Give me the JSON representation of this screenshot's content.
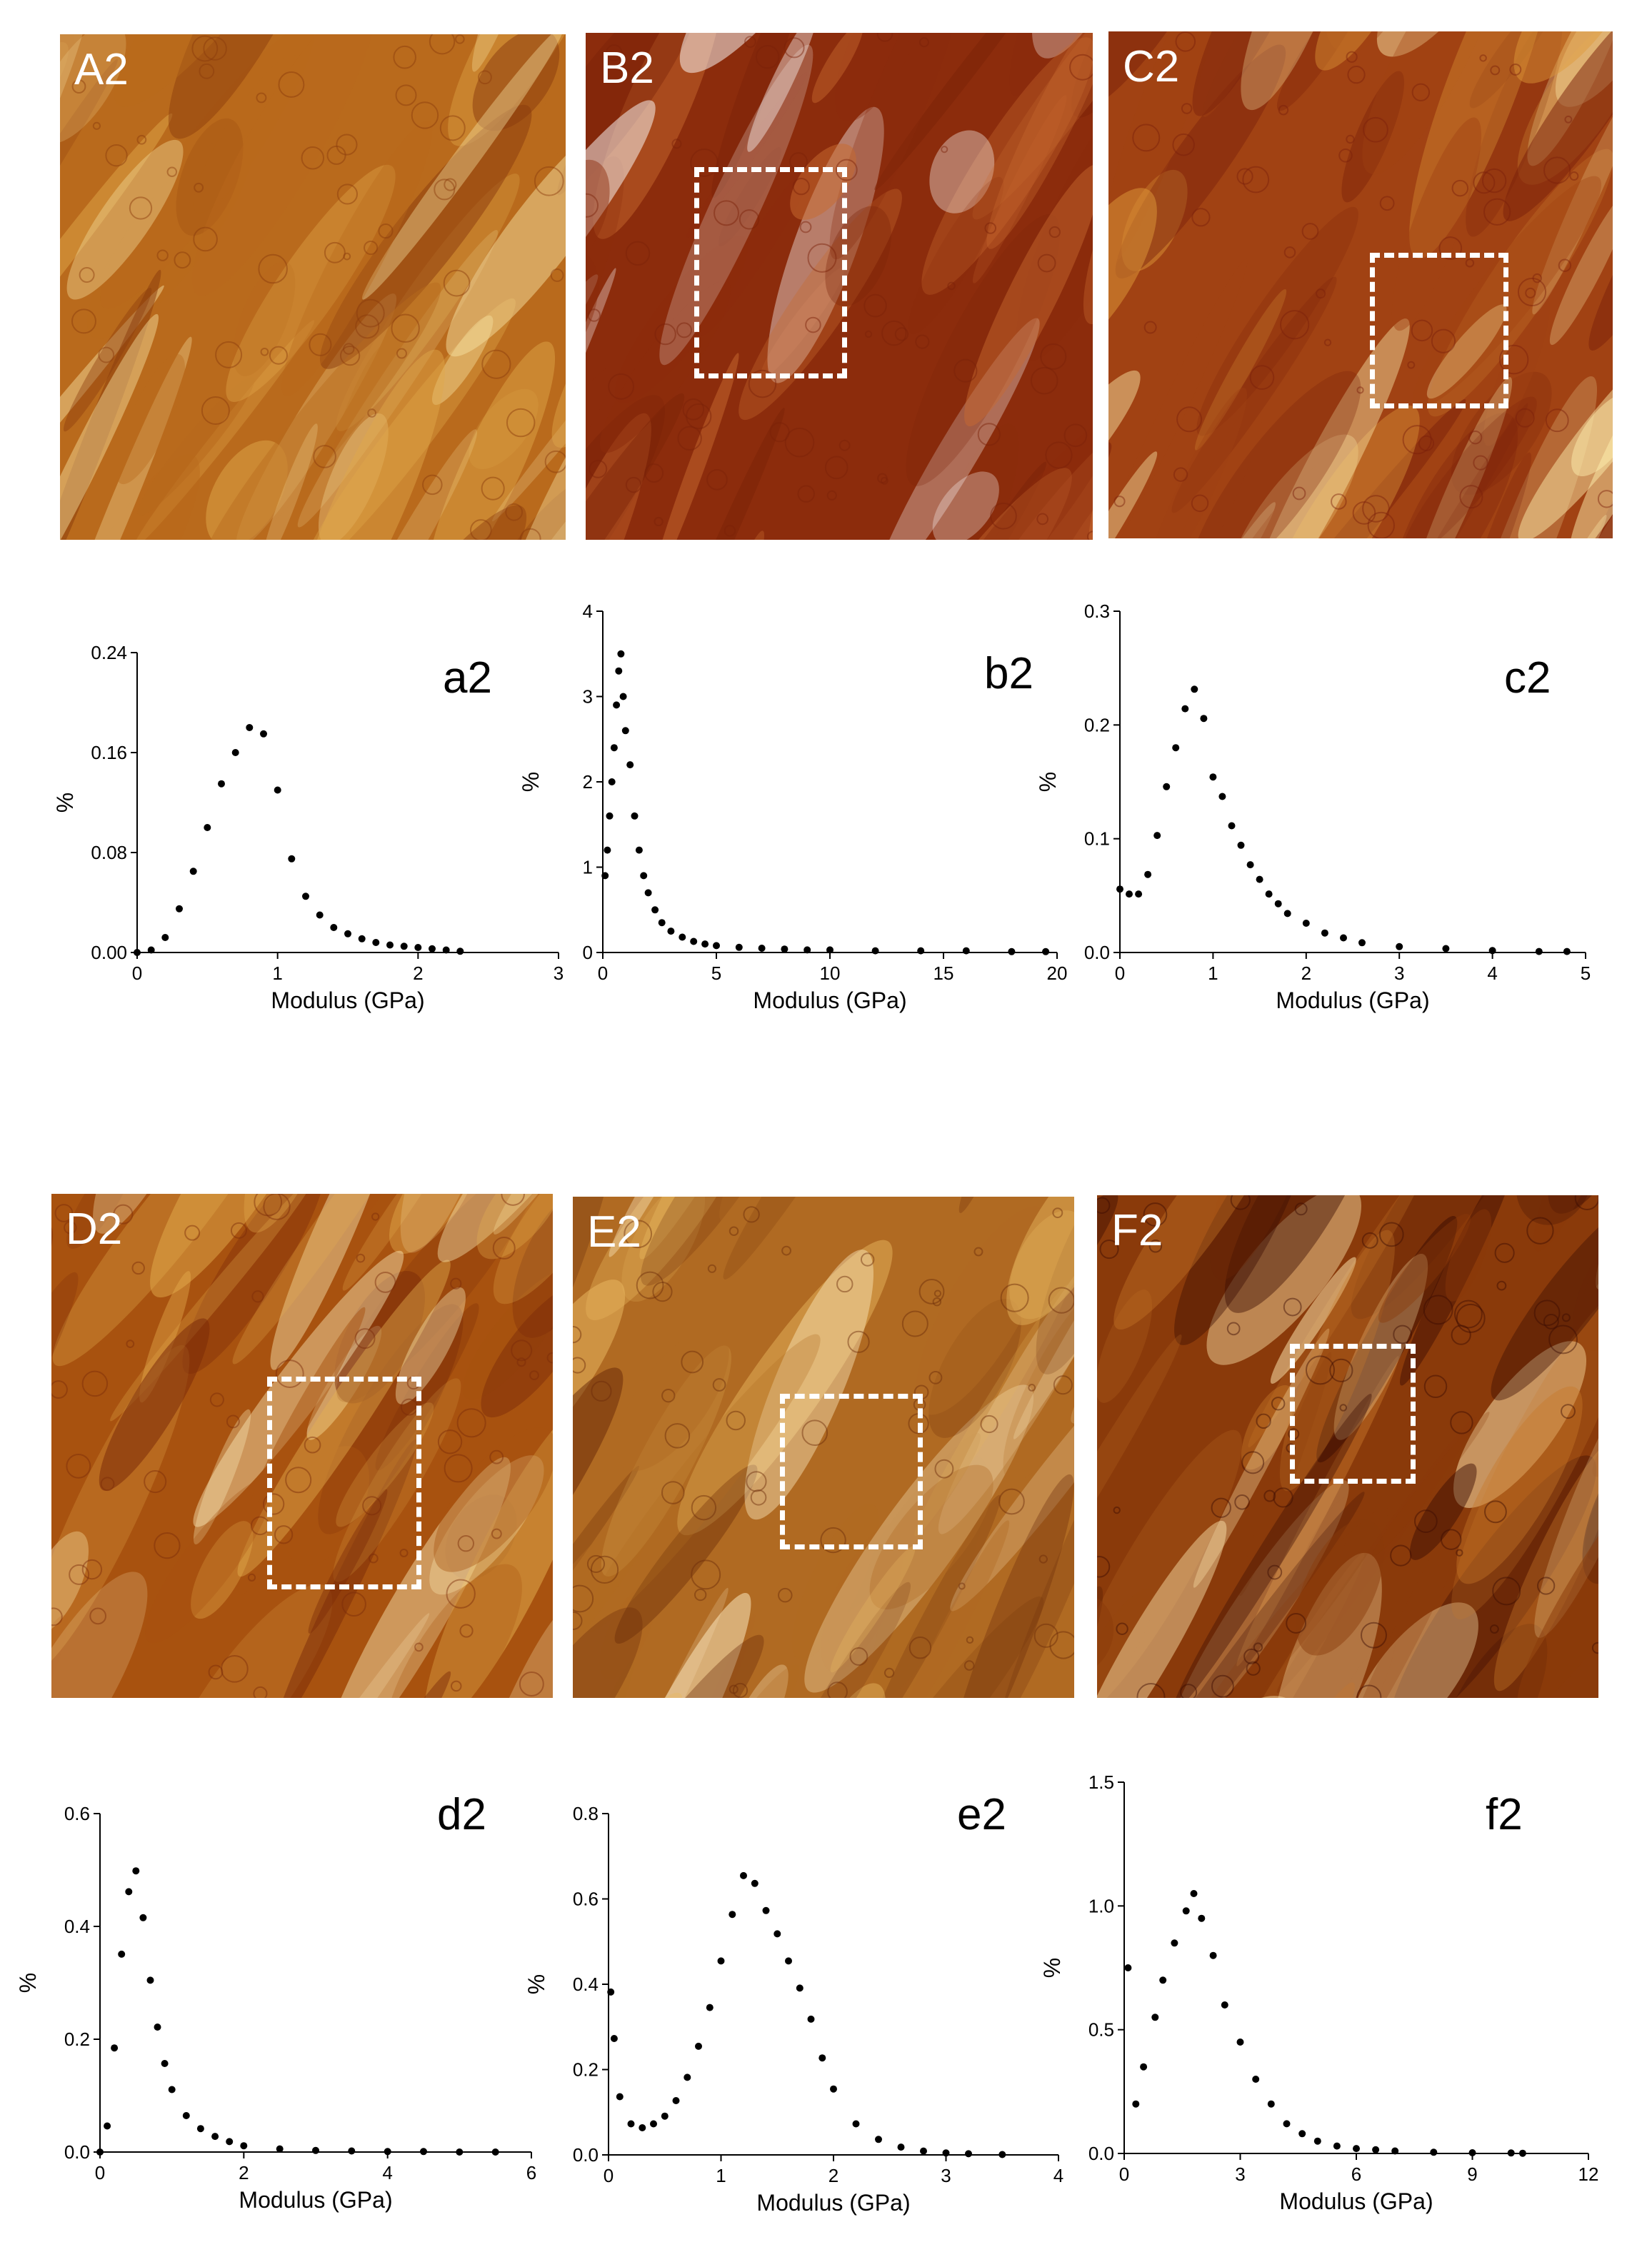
{
  "colors": {
    "marker": "#000000",
    "axis": "#000000",
    "map_dark": "#6e1d08",
    "map_mid": "#a8520f",
    "map_light": "#f0c060"
  },
  "images": [
    {
      "label": "A2",
      "palette": [
        "#8a3a0c",
        "#b96a1c",
        "#e0a84a",
        "#f6e0a0"
      ],
      "roi": false
    },
    {
      "label": "B2",
      "palette": [
        "#7a2208",
        "#8c2c0c",
        "#c86a30",
        "#ffffff"
      ],
      "roi": true
    },
    {
      "label": "C2",
      "palette": [
        "#7a200a",
        "#a14213",
        "#e09a3a",
        "#fff0b0"
      ],
      "roi": true
    },
    {
      "label": "D2",
      "palette": [
        "#7a2a08",
        "#a8520f",
        "#e6b050",
        "#fff2c0"
      ],
      "roi": true
    },
    {
      "label": "E2",
      "palette": [
        "#6a2a08",
        "#b06a22",
        "#e8b860",
        "#fff0c8"
      ],
      "roi": true
    },
    {
      "label": "F2",
      "palette": [
        "#3a0c02",
        "#8a3a0a",
        "#c8782a",
        "#ffe8b0"
      ],
      "roi": true
    }
  ],
  "chart_data": [
    {
      "type": "scatter",
      "label": "a2",
      "xlabel": "Modulus (GPa)",
      "ylabel": "%",
      "xlim": [
        0,
        3
      ],
      "ylim": [
        0,
        0.24
      ],
      "xticks": [
        "0",
        "1",
        "2",
        "3"
      ],
      "yticks": [
        "0.00",
        "0.08",
        "0.16",
        "0.24"
      ],
      "x": [
        0.0,
        0.1,
        0.2,
        0.3,
        0.4,
        0.5,
        0.6,
        0.7,
        0.8,
        0.9,
        1.0,
        1.1,
        1.2,
        1.3,
        1.4,
        1.5,
        1.6,
        1.7,
        1.8,
        1.9,
        2.0,
        2.1,
        2.2,
        2.3
      ],
      "y": [
        0.0,
        0.002,
        0.012,
        0.035,
        0.065,
        0.1,
        0.135,
        0.16,
        0.18,
        0.175,
        0.13,
        0.075,
        0.045,
        0.03,
        0.02,
        0.015,
        0.011,
        0.008,
        0.006,
        0.005,
        0.004,
        0.003,
        0.002,
        0.001
      ]
    },
    {
      "type": "scatter",
      "label": "b2",
      "xlabel": "Modulus (GPa)",
      "ylabel": "%",
      "xlim": [
        0,
        20
      ],
      "ylim": [
        0,
        4
      ],
      "xticks": [
        "0",
        "5",
        "10",
        "15",
        "20"
      ],
      "yticks": [
        "0",
        "1",
        "2",
        "3",
        "4"
      ],
      "x": [
        0.1,
        0.2,
        0.3,
        0.4,
        0.5,
        0.6,
        0.7,
        0.8,
        0.9,
        1.0,
        1.2,
        1.4,
        1.6,
        1.8,
        2.0,
        2.3,
        2.6,
        3.0,
        3.5,
        4.0,
        4.5,
        5.0,
        6.0,
        7.0,
        8.0,
        9.0,
        10.0,
        12.0,
        14.0,
        16.0,
        18.0,
        19.5
      ],
      "y": [
        0.9,
        1.2,
        1.6,
        2.0,
        2.4,
        2.9,
        3.3,
        3.5,
        3.0,
        2.6,
        2.2,
        1.6,
        1.2,
        0.9,
        0.7,
        0.5,
        0.35,
        0.25,
        0.18,
        0.13,
        0.1,
        0.08,
        0.06,
        0.05,
        0.04,
        0.03,
        0.03,
        0.02,
        0.02,
        0.02,
        0.01,
        0.01
      ]
    },
    {
      "type": "scatter",
      "label": "c2",
      "xlabel": "Modulus (GPa)",
      "ylabel": "%",
      "xlim": [
        0,
        5
      ],
      "ylim": [
        0,
        0.35
      ],
      "xticks": [
        "0",
        "1",
        "2",
        "3",
        "4",
        "5"
      ],
      "yticks": [
        "0.0",
        "0.1",
        "0.2",
        "0.3"
      ],
      "x": [
        0.0,
        0.1,
        0.2,
        0.3,
        0.4,
        0.5,
        0.6,
        0.7,
        0.8,
        0.9,
        1.0,
        1.1,
        1.2,
        1.3,
        1.4,
        1.5,
        1.6,
        1.7,
        1.8,
        2.0,
        2.2,
        2.4,
        2.6,
        3.0,
        3.5,
        4.0,
        4.5,
        4.8
      ],
      "y": [
        0.065,
        0.06,
        0.06,
        0.08,
        0.12,
        0.17,
        0.21,
        0.25,
        0.27,
        0.24,
        0.18,
        0.16,
        0.13,
        0.11,
        0.09,
        0.075,
        0.06,
        0.05,
        0.04,
        0.03,
        0.02,
        0.015,
        0.01,
        0.006,
        0.004,
        0.002,
        0.001,
        0.001
      ]
    },
    {
      "type": "scatter",
      "label": "d2",
      "xlabel": "Modulus (GPa)",
      "ylabel": "%",
      "xlim": [
        0,
        6
      ],
      "ylim": [
        0,
        0.65
      ],
      "xticks": [
        "0",
        "2",
        "4",
        "6"
      ],
      "yticks": [
        "0.0",
        "0.2",
        "0.4",
        "0.6"
      ],
      "x": [
        0.0,
        0.1,
        0.2,
        0.3,
        0.4,
        0.5,
        0.6,
        0.7,
        0.8,
        0.9,
        1.0,
        1.2,
        1.4,
        1.6,
        1.8,
        2.0,
        2.5,
        3.0,
        3.5,
        4.0,
        4.5,
        5.0,
        5.5
      ],
      "y": [
        0.0,
        0.05,
        0.2,
        0.38,
        0.5,
        0.54,
        0.45,
        0.33,
        0.24,
        0.17,
        0.12,
        0.07,
        0.045,
        0.03,
        0.02,
        0.012,
        0.006,
        0.003,
        0.002,
        0.001,
        0.001,
        0.0,
        0.0
      ]
    },
    {
      "type": "scatter",
      "label": "e2",
      "xlabel": "Modulus (GPa)",
      "ylabel": "%",
      "xlim": [
        0,
        4
      ],
      "ylim": [
        0,
        0.88
      ],
      "xticks": [
        "0",
        "1",
        "2",
        "3",
        "4"
      ],
      "yticks": [
        "0.0",
        "0.2",
        "0.4",
        "0.6",
        "0.8"
      ],
      "x": [
        0.02,
        0.05,
        0.1,
        0.2,
        0.3,
        0.4,
        0.5,
        0.6,
        0.7,
        0.8,
        0.9,
        1.0,
        1.1,
        1.2,
        1.3,
        1.4,
        1.5,
        1.6,
        1.7,
        1.8,
        1.9,
        2.0,
        2.2,
        2.4,
        2.6,
        2.8,
        3.0,
        3.2,
        3.5
      ],
      "y": [
        0.42,
        0.3,
        0.15,
        0.08,
        0.07,
        0.08,
        0.1,
        0.14,
        0.2,
        0.28,
        0.38,
        0.5,
        0.62,
        0.72,
        0.7,
        0.63,
        0.57,
        0.5,
        0.43,
        0.35,
        0.25,
        0.17,
        0.08,
        0.04,
        0.02,
        0.01,
        0.005,
        0.003,
        0.001
      ]
    },
    {
      "type": "scatter",
      "label": "f2",
      "xlabel": "Modulus (GPa)",
      "ylabel": "%",
      "xlim": [
        0,
        12
      ],
      "ylim": [
        0,
        1.5
      ],
      "xticks": [
        "0",
        "3",
        "6",
        "9",
        "12"
      ],
      "yticks": [
        "0.0",
        "0.5",
        "1.0",
        "1.5"
      ],
      "x": [
        0.1,
        0.3,
        0.5,
        0.8,
        1.0,
        1.3,
        1.6,
        1.8,
        2.0,
        2.3,
        2.6,
        3.0,
        3.4,
        3.8,
        4.2,
        4.6,
        5.0,
        5.5,
        6.0,
        6.5,
        7.0,
        8.0,
        9.0,
        10.0,
        10.3
      ],
      "y": [
        0.75,
        0.2,
        0.35,
        0.55,
        0.7,
        0.85,
        0.98,
        1.05,
        0.95,
        0.8,
        0.6,
        0.45,
        0.3,
        0.2,
        0.12,
        0.08,
        0.05,
        0.03,
        0.02,
        0.015,
        0.01,
        0.005,
        0.003,
        0.002,
        0.001
      ]
    }
  ]
}
